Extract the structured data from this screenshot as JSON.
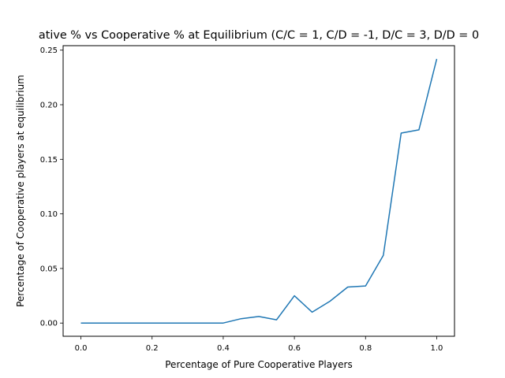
{
  "chart_data": {
    "type": "line",
    "title": "ative % vs Cooperative % at Equilibrium (C/C = 1, C/D = -1, D/C = 3, D/D = 0",
    "xlabel": "Percentage of Pure Cooperative Players",
    "ylabel": "Percentage of Cooperative players at equilibrium",
    "xlim": [
      -0.05,
      1.05
    ],
    "ylim": [
      -0.0121,
      0.2541
    ],
    "xticks": [
      0.0,
      0.2,
      0.4,
      0.6,
      0.8,
      1.0
    ],
    "xtick_labels": [
      "0.0",
      "0.2",
      "0.4",
      "0.6",
      "0.8",
      "1.0"
    ],
    "yticks": [
      0.0,
      0.05,
      0.1,
      0.15,
      0.2,
      0.25
    ],
    "ytick_labels": [
      "0.00",
      "0.05",
      "0.10",
      "0.15",
      "0.20",
      "0.25"
    ],
    "grid": false,
    "series": [
      {
        "color": "#1f77b4",
        "x": [
          0.0,
          0.05,
          0.1,
          0.15,
          0.2,
          0.25,
          0.3,
          0.35,
          0.4,
          0.45,
          0.5,
          0.55,
          0.6,
          0.65,
          0.7,
          0.75,
          0.8,
          0.85,
          0.9,
          0.95,
          1.0
        ],
        "y": [
          0.0,
          0.0,
          0.0,
          0.0,
          0.0,
          0.0,
          0.0,
          0.0,
          0.0,
          0.004,
          0.006,
          0.003,
          0.025,
          0.01,
          0.02,
          0.033,
          0.034,
          0.062,
          0.174,
          0.177,
          0.242
        ]
      }
    ]
  }
}
